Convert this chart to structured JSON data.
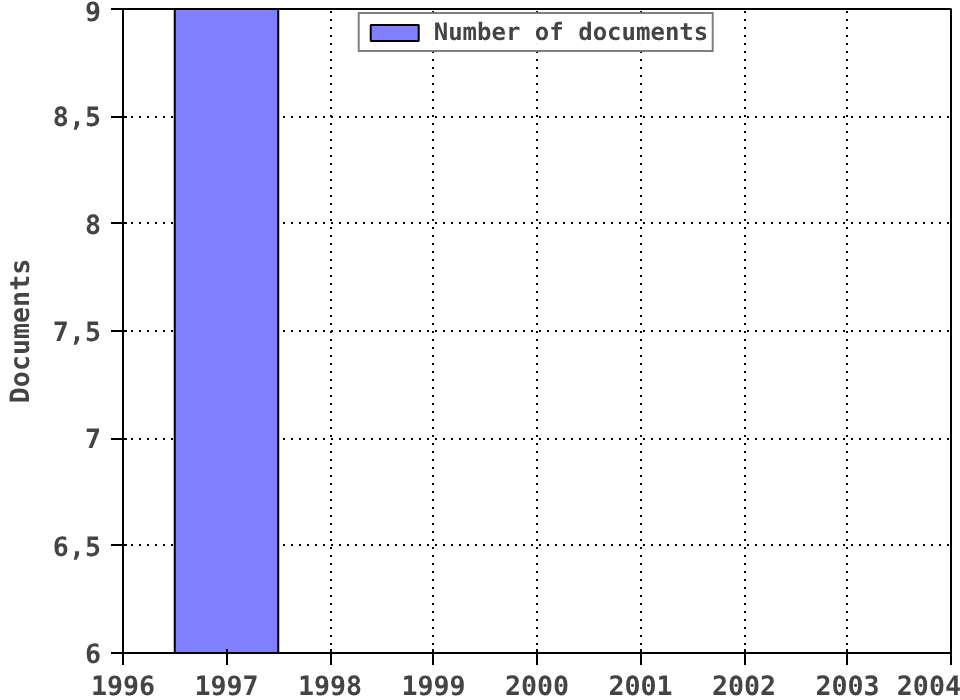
{
  "chart_data": {
    "type": "bar",
    "ylabel": "Documents",
    "x": [
      1997
    ],
    "series": [
      {
        "name": "Number of documents",
        "color": "#8080ff",
        "values": [
          9
        ]
      }
    ],
    "xlim": [
      1996,
      2004
    ],
    "xticks": [
      1996,
      1997,
      1998,
      1999,
      2000,
      2001,
      2002,
      2003,
      2004
    ],
    "ylim": [
      6,
      9
    ],
    "yticks": [
      6,
      {
        "value": 6.5,
        "label": "6,5"
      },
      7,
      {
        "value": 7.5,
        "label": "7,5"
      },
      8,
      {
        "value": 8.5,
        "label": "8,5"
      },
      9
    ],
    "grid": true,
    "legend": "top"
  }
}
